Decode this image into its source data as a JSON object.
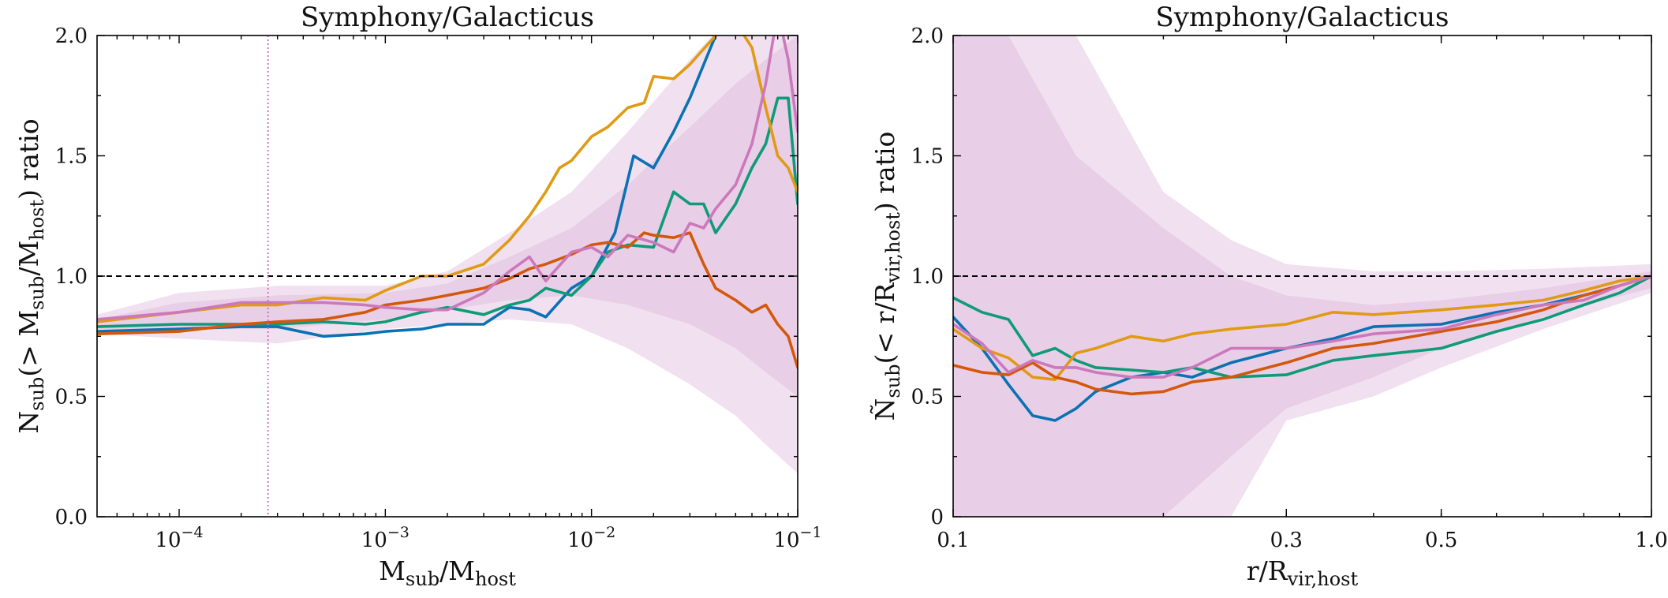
{
  "chart_data": [
    {
      "type": "line",
      "title": "Symphony/Galacticus",
      "xlabel": "M_sub/M_host",
      "ylabel": "N_sub(> M_sub/M_host) ratio",
      "xscale": "log",
      "xlim": [
        4e-05,
        0.1
      ],
      "ylim": [
        0.0,
        2.0
      ],
      "xticks": [
        0.0001,
        0.001,
        0.01,
        0.1
      ],
      "xtick_labels": [
        "10^-4",
        "10^-3",
        "10^-2",
        "10^-1"
      ],
      "yticks": [
        0.0,
        0.5,
        1.0,
        1.5,
        2.0
      ],
      "ytick_labels": [
        "0.0",
        "0.5",
        "1.0",
        "1.5",
        "2.0"
      ],
      "reference_hline": 1.0,
      "reference_vline": 0.00027,
      "bands": [
        {
          "name": "outer",
          "color": "#f1e1f0",
          "x": [
            4e-05,
            0.0001,
            0.0003,
            0.001,
            0.002,
            0.004,
            0.008,
            0.015,
            0.03,
            0.05,
            0.07,
            0.1
          ],
          "lower": [
            0.76,
            0.74,
            0.72,
            0.78,
            0.8,
            0.82,
            0.8,
            0.7,
            0.55,
            0.42,
            0.3,
            0.18
          ],
          "upper": [
            0.84,
            0.93,
            0.96,
            0.96,
            1.02,
            1.18,
            1.35,
            1.6,
            1.9,
            2.1,
            2.2,
            2.3
          ]
        },
        {
          "name": "inner",
          "color": "#e8cfe7",
          "x": [
            4e-05,
            0.0001,
            0.0003,
            0.001,
            0.002,
            0.004,
            0.008,
            0.015,
            0.03,
            0.05,
            0.07,
            0.1
          ],
          "lower": [
            0.78,
            0.78,
            0.78,
            0.82,
            0.86,
            0.9,
            0.92,
            0.88,
            0.8,
            0.7,
            0.6,
            0.5
          ],
          "upper": [
            0.82,
            0.89,
            0.92,
            0.93,
            0.97,
            1.08,
            1.2,
            1.38,
            1.62,
            1.8,
            1.9,
            2.0
          ]
        }
      ],
      "series": [
        {
          "name": "blue",
          "color": "#0a72b3",
          "x": [
            4e-05,
            0.0001,
            0.0002,
            0.0003,
            0.0005,
            0.0008,
            0.001,
            0.0015,
            0.002,
            0.003,
            0.004,
            0.005,
            0.006,
            0.008,
            0.01,
            0.013,
            0.016,
            0.02,
            0.025,
            0.03,
            0.04
          ],
          "y": [
            0.77,
            0.78,
            0.79,
            0.79,
            0.75,
            0.76,
            0.77,
            0.78,
            0.8,
            0.8,
            0.87,
            0.86,
            0.83,
            0.95,
            1.0,
            1.18,
            1.5,
            1.45,
            1.6,
            1.74,
            2.0
          ]
        },
        {
          "name": "green",
          "color": "#0f9a78",
          "x": [
            4e-05,
            0.0001,
            0.0002,
            0.0003,
            0.0005,
            0.0008,
            0.001,
            0.0015,
            0.002,
            0.003,
            0.004,
            0.005,
            0.006,
            0.008,
            0.01,
            0.012,
            0.015,
            0.02,
            0.025,
            0.03,
            0.035,
            0.04,
            0.05,
            0.06,
            0.07,
            0.08,
            0.09,
            0.1
          ],
          "y": [
            0.79,
            0.8,
            0.8,
            0.8,
            0.81,
            0.8,
            0.81,
            0.85,
            0.87,
            0.84,
            0.88,
            0.9,
            0.95,
            0.92,
            1.0,
            1.1,
            1.13,
            1.12,
            1.35,
            1.3,
            1.3,
            1.18,
            1.3,
            1.45,
            1.55,
            1.74,
            1.74,
            1.3
          ]
        },
        {
          "name": "orange",
          "color": "#e09a14",
          "x": [
            4e-05,
            0.0001,
            0.0002,
            0.0003,
            0.0005,
            0.0008,
            0.001,
            0.0015,
            0.002,
            0.003,
            0.004,
            0.005,
            0.006,
            0.007,
            0.008,
            0.01,
            0.012,
            0.015,
            0.018,
            0.02,
            0.025,
            0.03,
            0.04,
            0.05,
            0.055,
            0.06,
            0.07,
            0.08,
            0.09,
            0.1
          ],
          "y": [
            0.81,
            0.85,
            0.88,
            0.88,
            0.91,
            0.9,
            0.94,
            1.0,
            1.0,
            1.05,
            1.15,
            1.25,
            1.35,
            1.45,
            1.48,
            1.58,
            1.62,
            1.7,
            1.72,
            1.83,
            1.82,
            1.88,
            2.0,
            2.1,
            2.0,
            1.95,
            1.7,
            1.5,
            1.45,
            1.35
          ]
        },
        {
          "name": "vermilion",
          "color": "#d4580c",
          "x": [
            4e-05,
            0.0001,
            0.0002,
            0.0003,
            0.0005,
            0.0008,
            0.001,
            0.0015,
            0.002,
            0.003,
            0.004,
            0.005,
            0.006,
            0.008,
            0.01,
            0.012,
            0.015,
            0.018,
            0.02,
            0.025,
            0.03,
            0.035,
            0.04,
            0.05,
            0.06,
            0.07,
            0.08,
            0.09,
            0.1
          ],
          "y": [
            0.76,
            0.77,
            0.8,
            0.81,
            0.82,
            0.85,
            0.88,
            0.9,
            0.92,
            0.95,
            0.99,
            1.03,
            1.05,
            1.09,
            1.13,
            1.14,
            1.12,
            1.18,
            1.17,
            1.16,
            1.18,
            1.05,
            0.95,
            0.9,
            0.85,
            0.88,
            0.8,
            0.75,
            0.62
          ]
        },
        {
          "name": "pink",
          "color": "#cc78bc",
          "x": [
            4e-05,
            0.0001,
            0.0002,
            0.0003,
            0.0005,
            0.0008,
            0.001,
            0.0015,
            0.002,
            0.003,
            0.004,
            0.005,
            0.006,
            0.008,
            0.01,
            0.012,
            0.015,
            0.02,
            0.025,
            0.03,
            0.035,
            0.04,
            0.05,
            0.06,
            0.07,
            0.08,
            0.09,
            0.1
          ],
          "y": [
            0.82,
            0.85,
            0.89,
            0.89,
            0.89,
            0.88,
            0.87,
            0.86,
            0.86,
            0.93,
            1.02,
            1.08,
            0.98,
            1.1,
            1.12,
            1.08,
            1.17,
            1.14,
            1.1,
            1.22,
            1.2,
            1.28,
            1.38,
            1.55,
            1.8,
            2.1,
            1.9,
            1.6
          ]
        }
      ]
    },
    {
      "type": "line",
      "title": "Symphony/Galacticus",
      "xlabel": "r/R_vir,host",
      "ylabel": "Ñ_sub(< r/R_vir,host) ratio",
      "xscale": "log",
      "xlim": [
        0.1,
        1.0
      ],
      "ylim": [
        0.0,
        2.0
      ],
      "xticks": [
        0.1,
        0.3,
        0.5,
        1.0
      ],
      "xtick_labels": [
        "0.1",
        "0.3",
        "0.5",
        "1.0"
      ],
      "yticks": [
        0,
        0.5,
        1.0,
        1.5,
        2.0
      ],
      "ytick_labels": [
        "0",
        "0.5",
        "1.0",
        "1.5",
        "2.0"
      ],
      "reference_hline": 1.0,
      "bands": [
        {
          "name": "outer",
          "color": "#f1e1f0",
          "x": [
            0.1,
            0.12,
            0.15,
            0.2,
            0.25,
            0.3,
            0.4,
            0.5,
            0.7,
            1.0
          ],
          "lower": [
            0.0,
            0.0,
            0.0,
            0.0,
            0.0,
            0.4,
            0.5,
            0.62,
            0.78,
            0.93
          ],
          "upper": [
            2.0,
            2.0,
            2.0,
            1.35,
            1.15,
            1.05,
            1.02,
            1.02,
            1.03,
            1.05
          ]
        },
        {
          "name": "inner",
          "color": "#e8cfe7",
          "x": [
            0.1,
            0.12,
            0.15,
            0.2,
            0.25,
            0.3,
            0.4,
            0.5,
            0.7,
            1.0
          ],
          "lower": [
            0.0,
            0.0,
            0.0,
            0.0,
            0.25,
            0.45,
            0.58,
            0.7,
            0.83,
            0.95
          ],
          "upper": [
            2.0,
            2.0,
            1.5,
            1.2,
            1.0,
            0.92,
            0.88,
            0.9,
            0.95,
            1.02
          ]
        }
      ],
      "series": [
        {
          "name": "blue",
          "color": "#0a72b3",
          "x": [
            0.1,
            0.11,
            0.12,
            0.13,
            0.14,
            0.15,
            0.16,
            0.18,
            0.2,
            0.22,
            0.25,
            0.3,
            0.35,
            0.4,
            0.5,
            0.6,
            0.7,
            0.8,
            0.9,
            1.0
          ],
          "y": [
            0.83,
            0.7,
            0.55,
            0.42,
            0.4,
            0.45,
            0.52,
            0.58,
            0.6,
            0.58,
            0.64,
            0.7,
            0.74,
            0.79,
            0.8,
            0.85,
            0.88,
            0.92,
            0.96,
            1.0
          ]
        },
        {
          "name": "green",
          "color": "#0f9a78",
          "x": [
            0.1,
            0.11,
            0.12,
            0.13,
            0.14,
            0.15,
            0.16,
            0.18,
            0.2,
            0.22,
            0.25,
            0.3,
            0.35,
            0.4,
            0.5,
            0.6,
            0.7,
            0.8,
            0.9,
            1.0
          ],
          "y": [
            0.91,
            0.85,
            0.82,
            0.67,
            0.7,
            0.65,
            0.62,
            0.61,
            0.6,
            0.62,
            0.58,
            0.59,
            0.65,
            0.67,
            0.7,
            0.77,
            0.82,
            0.88,
            0.93,
            1.0
          ]
        },
        {
          "name": "orange",
          "color": "#e09a14",
          "x": [
            0.1,
            0.11,
            0.12,
            0.13,
            0.14,
            0.15,
            0.16,
            0.18,
            0.2,
            0.22,
            0.25,
            0.3,
            0.35,
            0.4,
            0.5,
            0.6,
            0.7,
            0.8,
            0.9,
            1.0
          ],
          "y": [
            0.78,
            0.7,
            0.66,
            0.58,
            0.57,
            0.68,
            0.7,
            0.75,
            0.73,
            0.76,
            0.78,
            0.8,
            0.85,
            0.84,
            0.86,
            0.88,
            0.9,
            0.94,
            0.98,
            1.0
          ]
        },
        {
          "name": "vermilion",
          "color": "#d4580c",
          "x": [
            0.1,
            0.11,
            0.12,
            0.13,
            0.14,
            0.15,
            0.16,
            0.18,
            0.2,
            0.22,
            0.25,
            0.3,
            0.35,
            0.4,
            0.5,
            0.6,
            0.7,
            0.8,
            0.9,
            1.0
          ],
          "y": [
            0.63,
            0.6,
            0.59,
            0.64,
            0.58,
            0.56,
            0.53,
            0.51,
            0.52,
            0.56,
            0.58,
            0.64,
            0.7,
            0.72,
            0.77,
            0.81,
            0.86,
            0.92,
            0.96,
            1.0
          ]
        },
        {
          "name": "pink",
          "color": "#cc78bc",
          "x": [
            0.1,
            0.11,
            0.12,
            0.13,
            0.14,
            0.15,
            0.16,
            0.18,
            0.2,
            0.22,
            0.25,
            0.3,
            0.35,
            0.4,
            0.5,
            0.6,
            0.7,
            0.8,
            0.9,
            1.0
          ],
          "y": [
            0.8,
            0.72,
            0.6,
            0.65,
            0.62,
            0.62,
            0.6,
            0.58,
            0.58,
            0.62,
            0.7,
            0.7,
            0.73,
            0.76,
            0.78,
            0.84,
            0.88,
            0.9,
            0.96,
            1.0
          ]
        }
      ]
    }
  ]
}
